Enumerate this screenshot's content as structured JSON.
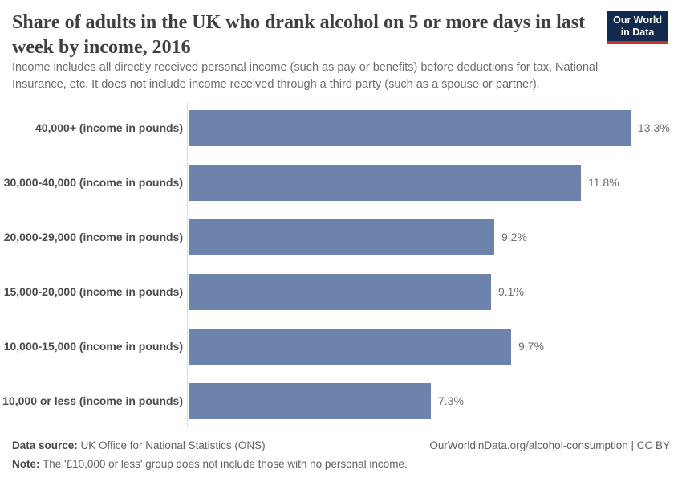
{
  "header": {
    "title_lines": [
      "Share of adults in the UK who drank alcohol on 5 or more days in last",
      "week by income, 2016"
    ],
    "subtitle_lines": [
      "Income includes all directly received personal income (such as pay or benefits) before deductions for tax, National",
      "Insurance, etc. It does not include income received through a third party (such as a spouse or partner)."
    ],
    "logo": {
      "line1": "Our World",
      "line2": "in Data",
      "background_color": "#13294e",
      "stripe_color": "#c0362c"
    }
  },
  "chart_data": {
    "type": "bar",
    "orientation": "horizontal",
    "title": "Share of adults in the UK who drank alcohol on 5 or more days in last week by income, 2016",
    "categories": [
      "40,000+ (income in pounds)",
      "30,000-40,000 (income in pounds)",
      "20,000-29,000 (income in pounds)",
      "15,000-20,000 (income in pounds)",
      "10,000-15,000 (income in pounds)",
      "10,000 or less (income in pounds)"
    ],
    "values": [
      13.3,
      11.8,
      9.2,
      9.1,
      9.7,
      7.3
    ],
    "value_labels": [
      "13.3%",
      "11.8%",
      "9.2%",
      "9.1%",
      "9.7%",
      "7.3%"
    ],
    "unit": "%",
    "xlim": [
      0,
      13.3
    ],
    "grid": false,
    "legend": "none",
    "bar_color": "#6d83ac",
    "axis_line_color": "#dedede"
  },
  "footer": {
    "source_label": "Data source:",
    "source_text": " UK Office for National Statistics (ONS)",
    "note_label": "Note:",
    "note_text": " The '£10,000 or less' group does not include those with no personal income.",
    "link": "OurWorldinData.org/alcohol-consumption | CC BY"
  }
}
